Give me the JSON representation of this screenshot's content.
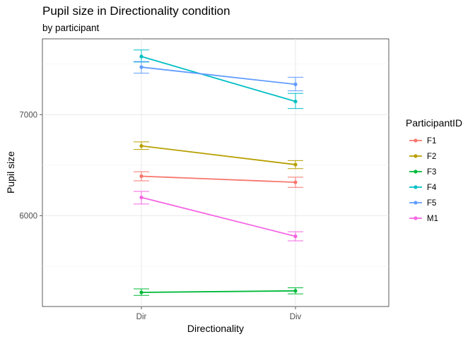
{
  "chart_data": {
    "type": "line",
    "title": "Pupil size in Directionality condition",
    "subtitle": "by participant",
    "xlabel": "Directionality",
    "ylabel": "Pupil size",
    "categories": [
      "Dir",
      "Div"
    ],
    "yticks": [
      6000,
      7000
    ],
    "ylim": [
      5100,
      7750
    ],
    "grid": true,
    "legend": {
      "title": "ParticipantID",
      "position": "right"
    },
    "series": [
      {
        "name": "F1",
        "color": "#F8766D",
        "values": [
          6390,
          6330
        ],
        "err_low": [
          6345,
          6280
        ],
        "err_high": [
          6435,
          6380
        ]
      },
      {
        "name": "F2",
        "color": "#B79F00",
        "values": [
          6690,
          6505
        ],
        "err_low": [
          6655,
          6465
        ],
        "err_high": [
          6730,
          6545
        ]
      },
      {
        "name": "F3",
        "color": "#00BA38",
        "values": [
          5240,
          5255
        ],
        "err_low": [
          5210,
          5225
        ],
        "err_high": [
          5275,
          5285
        ]
      },
      {
        "name": "F4",
        "color": "#00BFC4",
        "values": [
          7575,
          7130
        ],
        "err_low": [
          7520,
          7060
        ],
        "err_high": [
          7640,
          7210
        ]
      },
      {
        "name": "F5",
        "color": "#619CFF",
        "values": [
          7470,
          7300
        ],
        "err_low": [
          7410,
          7235
        ],
        "err_high": [
          7525,
          7370
        ]
      },
      {
        "name": "M1",
        "color": "#F564E3",
        "values": [
          6180,
          5795
        ],
        "err_low": [
          6115,
          5750
        ],
        "err_high": [
          6240,
          5840
        ]
      }
    ]
  }
}
